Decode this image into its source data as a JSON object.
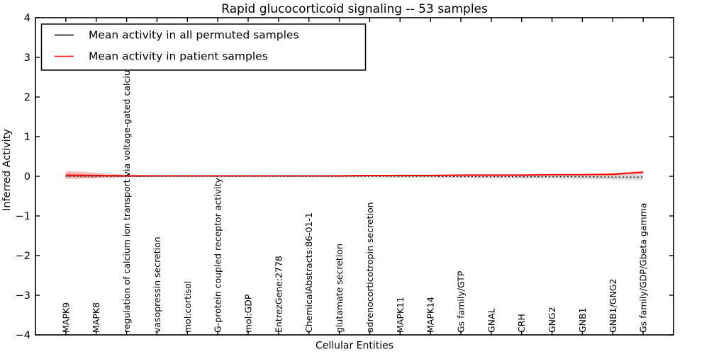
{
  "chart_data": {
    "type": "line",
    "title": "Rapid glucocorticoid signaling -- 53 samples",
    "xlabel": "Cellular Entities",
    "ylabel": "Inferred Activity",
    "ylim": [
      -4,
      4
    ],
    "yticks": [
      -4,
      -3,
      -2,
      -1,
      0,
      1,
      2,
      3,
      4
    ],
    "grid": false,
    "legend_position": "upper left",
    "categories": [
      "MAPK9",
      "MAPK8",
      "regulation of calcium ion transport via voltage-gated calcium channel",
      "vasopressin secretion",
      "mol:cortisol",
      "G-protein coupled receptor activity",
      "mol:GDP",
      "EntrezGene:2778",
      "ChemicalAbstracts:86-01-1",
      "glutamate secretion",
      "adrenocorticotropin secretion",
      "MAPK11",
      "MAPK14",
      "Gs family/GTP",
      "GNAL",
      "CRH",
      "GNG2",
      "GNB1",
      "GNB1/GNG2",
      "Gs family/GDP/Gbeta gamma"
    ],
    "series": [
      {
        "name": "Mean activity in all permuted samples",
        "color": "#000000",
        "line_style": "dotted",
        "values": [
          0.0,
          0.0,
          0.0,
          0.0,
          0.0,
          0.0,
          0.0,
          0.0,
          0.0,
          0.0,
          0.0,
          0.0,
          0.0,
          -0.01,
          -0.01,
          -0.01,
          -0.01,
          -0.01,
          -0.02,
          -0.02
        ],
        "band_halfwidth": [
          0.03,
          0.03,
          0.02,
          0.02,
          0.02,
          0.02,
          0.02,
          0.02,
          0.02,
          0.03,
          0.03,
          0.04,
          0.04,
          0.04,
          0.05,
          0.05,
          0.05,
          0.06,
          0.06,
          0.07
        ],
        "band_color": "rgba(130,130,130,0.30)"
      },
      {
        "name": "Mean activity in patient samples",
        "color": "#ff0000",
        "line_style": "solid",
        "values": [
          0.03,
          0.02,
          0.01,
          0.01,
          0.01,
          0.01,
          0.01,
          0.01,
          0.01,
          0.01,
          0.02,
          0.02,
          0.02,
          0.03,
          0.03,
          0.03,
          0.04,
          0.04,
          0.05,
          0.1
        ],
        "band_halfwidth": [
          0.1,
          0.07,
          0.03,
          0.02,
          0.02,
          0.02,
          0.02,
          0.02,
          0.02,
          0.02,
          0.02,
          0.02,
          0.02,
          0.02,
          0.02,
          0.02,
          0.02,
          0.02,
          0.03,
          0.04
        ],
        "band_color": "rgba(255,0,0,0.28)"
      }
    ]
  }
}
